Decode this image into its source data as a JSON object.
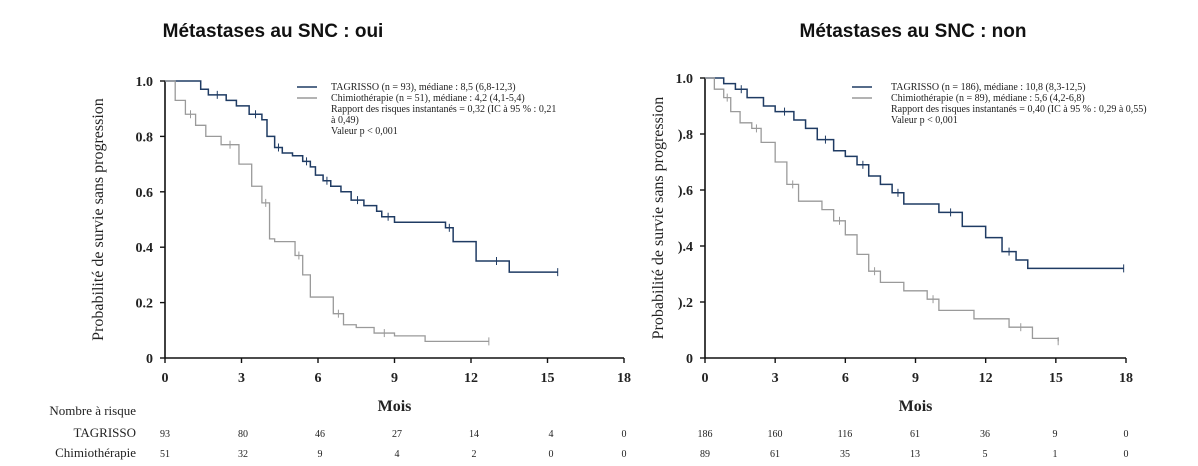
{
  "colors": {
    "tagrisso": "#1f3b63",
    "chimio": "#9a9a9a",
    "axis": "#111111"
  },
  "risk_table": {
    "title": "Nombre à risque",
    "row_labels": [
      "TAGRISSO",
      "Chimiothérapie"
    ]
  },
  "chart_data": [
    {
      "type": "line",
      "title": "Métastases au SNC : oui",
      "xlabel": "Mois",
      "ylabel": "Probabilité de survie sans progression",
      "xlim": [
        0,
        18
      ],
      "ylim": [
        0,
        1
      ],
      "xticks": [
        "0",
        "3",
        "6",
        "9",
        "12",
        "15",
        "18"
      ],
      "yticks": [
        "0",
        "0.2",
        "0.4",
        "0.6",
        "0.8",
        "1.0"
      ],
      "grid": false,
      "legend": [
        "TAGRISSO  (n = 93), médiane : 8,5 (6,8-12,3)",
        "Chimiothérapie  (n = 51), médiane : 4,2 (4,1-5,4)",
        "Rapport des risques instantanés = 0,32 (IC à 95 % : 0,21",
        "à 0,49)",
        "Valeur p < 0,001"
      ],
      "series": [
        {
          "name": "TAGRISSO",
          "color": "#1f3b63",
          "x": [
            0,
            1.4,
            1.7,
            2.4,
            2.8,
            3.3,
            3.8,
            4.0,
            4.3,
            4.6,
            5.0,
            5.4,
            5.7,
            5.9,
            6.2,
            6.5,
            6.9,
            7.3,
            7.8,
            8.3,
            8.5,
            9.0,
            10.0,
            11.0,
            11.3,
            12.2,
            12.5,
            13.5,
            15.4
          ],
          "y": [
            1.0,
            0.97,
            0.95,
            0.93,
            0.91,
            0.88,
            0.86,
            0.8,
            0.76,
            0.74,
            0.73,
            0.71,
            0.69,
            0.66,
            0.64,
            0.62,
            0.6,
            0.57,
            0.55,
            0.53,
            0.51,
            0.49,
            0.49,
            0.47,
            0.42,
            0.35,
            0.35,
            0.31,
            0.31
          ]
        },
        {
          "name": "Chimiothérapie",
          "color": "#9a9a9a",
          "x": [
            0,
            0.4,
            0.8,
            1.2,
            1.6,
            2.2,
            2.9,
            3.4,
            3.8,
            4.1,
            4.3,
            5.1,
            5.4,
            5.7,
            6.6,
            7.0,
            7.5,
            8.2,
            9.0,
            10.2,
            12.7
          ],
          "y": [
            1.0,
            0.93,
            0.88,
            0.84,
            0.8,
            0.77,
            0.7,
            0.62,
            0.56,
            0.43,
            0.42,
            0.37,
            0.3,
            0.22,
            0.16,
            0.12,
            0.11,
            0.09,
            0.08,
            0.06,
            0.06
          ]
        }
      ],
      "at_risk": {
        "TAGRISSO": [
          "93",
          "80",
          "46",
          "27",
          "14",
          "4",
          "0"
        ],
        "Chimiothérapie": [
          "51",
          "32",
          "9",
          "4",
          "2",
          "0",
          "0"
        ]
      }
    },
    {
      "type": "line",
      "title": "Métastases au SNC : non",
      "xlabel": "Mois",
      "ylabel": "Probabilité de survie sans progression",
      "xlim": [
        0,
        18
      ],
      "ylim": [
        0,
        1
      ],
      "xticks": [
        "0",
        "3",
        "6",
        "9",
        "12",
        "15",
        "18"
      ],
      "yticks": [
        "0",
        ").2",
        ").4",
        ").6",
        ").8",
        "1.0"
      ],
      "grid": false,
      "legend": [
        "TAGRISSO  (n = 186), médiane : 10,8 (8,3-12,5)",
        "Chimiothérapie  (n = 89), médiane : 5,6 (4,2-6,8)",
        "Rapport des risques instantanés = 0,40 (IC à 95 % : 0,29 à 0,55)",
        "Valeur p < 0,001"
      ],
      "series": [
        {
          "name": "TAGRISSO",
          "color": "#1f3b63",
          "x": [
            0,
            0.8,
            1.3,
            1.8,
            2.5,
            3.0,
            3.8,
            4.3,
            4.8,
            5.5,
            6.0,
            6.5,
            7.0,
            7.5,
            8.0,
            8.5,
            9.5,
            10.0,
            11.0,
            12.0,
            12.7,
            13.3,
            13.8,
            17.9
          ],
          "y": [
            1.0,
            0.98,
            0.96,
            0.93,
            0.9,
            0.88,
            0.85,
            0.82,
            0.78,
            0.74,
            0.72,
            0.69,
            0.65,
            0.62,
            0.59,
            0.55,
            0.55,
            0.52,
            0.47,
            0.43,
            0.38,
            0.35,
            0.32,
            0.32
          ]
        },
        {
          "name": "Chimiothérapie",
          "color": "#9a9a9a",
          "x": [
            0,
            0.4,
            0.8,
            1.1,
            1.5,
            2.0,
            2.4,
            3.0,
            3.5,
            4.0,
            5.0,
            5.5,
            6.0,
            6.5,
            7.0,
            7.5,
            8.5,
            9.5,
            10.0,
            11.5,
            13.0,
            14.0,
            15.1
          ],
          "y": [
            1.0,
            0.96,
            0.93,
            0.88,
            0.84,
            0.82,
            0.77,
            0.7,
            0.62,
            0.56,
            0.53,
            0.49,
            0.44,
            0.37,
            0.31,
            0.27,
            0.24,
            0.21,
            0.17,
            0.14,
            0.11,
            0.07,
            0.06
          ]
        }
      ],
      "at_risk": {
        "TAGRISSO": [
          "186",
          "160",
          "116",
          "61",
          "36",
          "9",
          "0"
        ],
        "Chimiothérapie": [
          "89",
          "61",
          "35",
          "13",
          "5",
          "1",
          "0"
        ]
      }
    }
  ]
}
